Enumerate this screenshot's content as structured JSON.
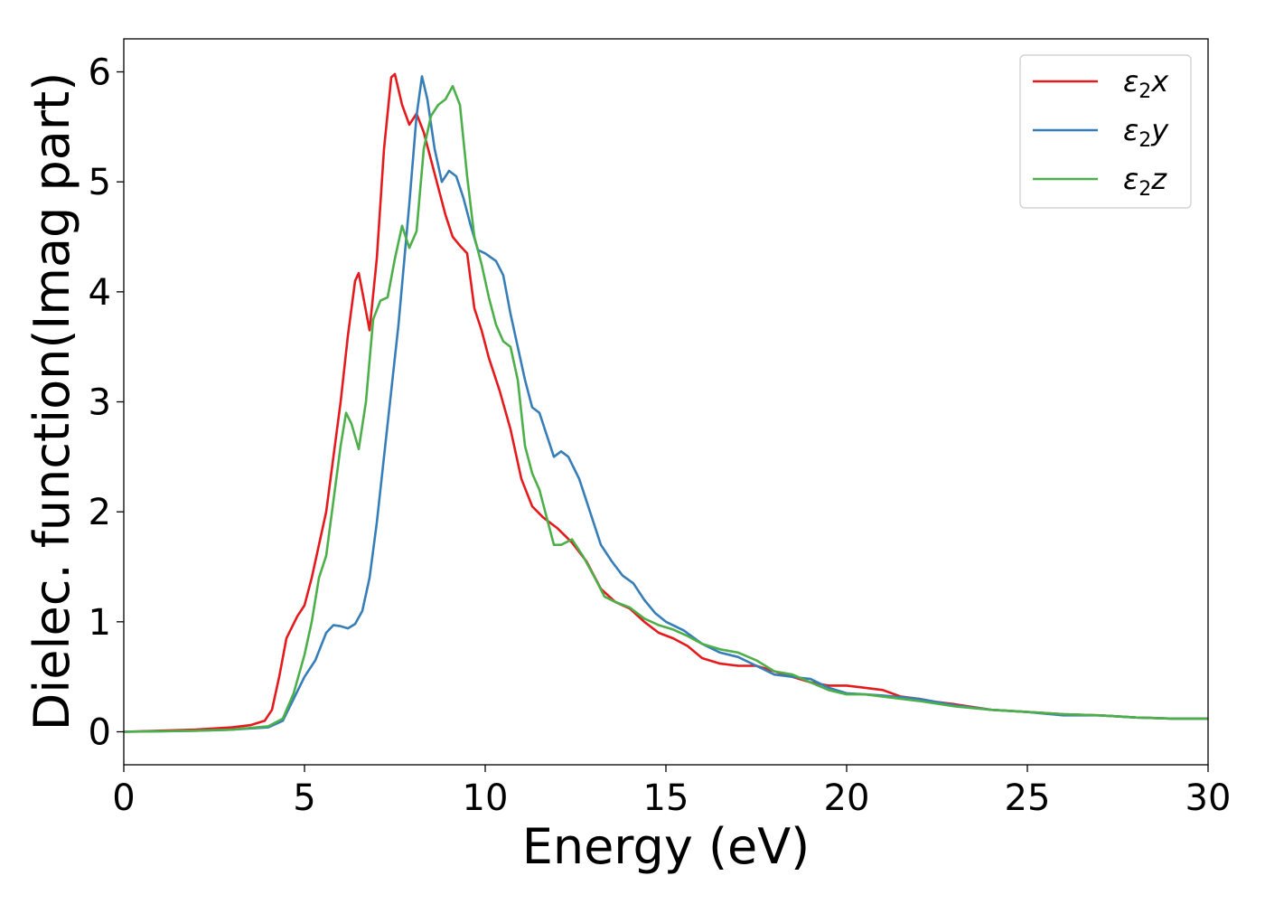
{
  "chart_data": {
    "type": "line",
    "title": "",
    "xlabel": "Energy (eV)",
    "ylabel": "Dielec. function(Imag part)",
    "xlim": [
      0,
      30
    ],
    "ylim": [
      -0.3,
      6.3
    ],
    "xticks": [
      0,
      5,
      10,
      15,
      20,
      25,
      30
    ],
    "yticks": [
      0,
      1,
      2,
      3,
      4,
      5,
      6
    ],
    "grid": false,
    "legend_position": "top-right",
    "series": [
      {
        "name": "ε₂x",
        "legend_main": "ε",
        "legend_sub": "2",
        "legend_suffix": "x",
        "color": "#e41a1c",
        "points": [
          [
            0,
            0
          ],
          [
            1,
            0.01
          ],
          [
            2,
            0.02
          ],
          [
            3,
            0.04
          ],
          [
            3.5,
            0.06
          ],
          [
            3.9,
            0.1
          ],
          [
            4.1,
            0.2
          ],
          [
            4.3,
            0.5
          ],
          [
            4.5,
            0.85
          ],
          [
            4.8,
            1.05
          ],
          [
            5,
            1.15
          ],
          [
            5.2,
            1.4
          ],
          [
            5.4,
            1.7
          ],
          [
            5.6,
            2.0
          ],
          [
            5.8,
            2.5
          ],
          [
            6.0,
            3.0
          ],
          [
            6.2,
            3.6
          ],
          [
            6.4,
            4.1
          ],
          [
            6.5,
            4.17
          ],
          [
            6.6,
            4.0
          ],
          [
            6.8,
            3.65
          ],
          [
            7.0,
            4.3
          ],
          [
            7.2,
            5.3
          ],
          [
            7.4,
            5.95
          ],
          [
            7.5,
            5.98
          ],
          [
            7.7,
            5.7
          ],
          [
            7.9,
            5.52
          ],
          [
            8.1,
            5.62
          ],
          [
            8.3,
            5.45
          ],
          [
            8.5,
            5.2
          ],
          [
            8.7,
            4.95
          ],
          [
            8.9,
            4.7
          ],
          [
            9.1,
            4.5
          ],
          [
            9.3,
            4.42
          ],
          [
            9.5,
            4.35
          ],
          [
            9.7,
            3.85
          ],
          [
            9.9,
            3.65
          ],
          [
            10.1,
            3.4
          ],
          [
            10.4,
            3.1
          ],
          [
            10.7,
            2.75
          ],
          [
            11.0,
            2.3
          ],
          [
            11.3,
            2.05
          ],
          [
            11.6,
            1.95
          ],
          [
            12.0,
            1.85
          ],
          [
            12.4,
            1.72
          ],
          [
            12.8,
            1.55
          ],
          [
            13.2,
            1.3
          ],
          [
            13.6,
            1.18
          ],
          [
            14.0,
            1.12
          ],
          [
            14.4,
            1.0
          ],
          [
            14.8,
            0.9
          ],
          [
            15.2,
            0.85
          ],
          [
            15.6,
            0.78
          ],
          [
            16.0,
            0.67
          ],
          [
            16.5,
            0.62
          ],
          [
            17.0,
            0.6
          ],
          [
            17.5,
            0.6
          ],
          [
            18.0,
            0.55
          ],
          [
            18.5,
            0.5
          ],
          [
            19.0,
            0.45
          ],
          [
            19.5,
            0.42
          ],
          [
            20.0,
            0.42
          ],
          [
            20.5,
            0.4
          ],
          [
            21.0,
            0.38
          ],
          [
            21.5,
            0.32
          ],
          [
            22.0,
            0.3
          ],
          [
            22.5,
            0.27
          ],
          [
            23.0,
            0.25
          ],
          [
            24.0,
            0.2
          ],
          [
            25.0,
            0.18
          ],
          [
            26.0,
            0.16
          ],
          [
            27.0,
            0.15
          ],
          [
            28.0,
            0.13
          ],
          [
            29.0,
            0.12
          ],
          [
            30.0,
            0.12
          ]
        ]
      },
      {
        "name": "ε₂y",
        "legend_main": "ε",
        "legend_sub": "2",
        "legend_suffix": "y",
        "color": "#377eb8",
        "points": [
          [
            0,
            0
          ],
          [
            1,
            0.005
          ],
          [
            2,
            0.01
          ],
          [
            3,
            0.02
          ],
          [
            4,
            0.04
          ],
          [
            4.4,
            0.1
          ],
          [
            4.7,
            0.3
          ],
          [
            5,
            0.5
          ],
          [
            5.3,
            0.65
          ],
          [
            5.6,
            0.9
          ],
          [
            5.8,
            0.97
          ],
          [
            6.0,
            0.96
          ],
          [
            6.2,
            0.94
          ],
          [
            6.4,
            0.98
          ],
          [
            6.6,
            1.1
          ],
          [
            6.8,
            1.4
          ],
          [
            7.0,
            1.9
          ],
          [
            7.3,
            2.8
          ],
          [
            7.6,
            3.7
          ],
          [
            7.9,
            4.8
          ],
          [
            8.1,
            5.6
          ],
          [
            8.25,
            5.96
          ],
          [
            8.4,
            5.75
          ],
          [
            8.6,
            5.3
          ],
          [
            8.8,
            5.0
          ],
          [
            9.0,
            5.1
          ],
          [
            9.2,
            5.05
          ],
          [
            9.4,
            4.85
          ],
          [
            9.6,
            4.6
          ],
          [
            9.8,
            4.38
          ],
          [
            10.0,
            4.35
          ],
          [
            10.3,
            4.28
          ],
          [
            10.5,
            4.15
          ],
          [
            10.7,
            3.8
          ],
          [
            10.9,
            3.5
          ],
          [
            11.1,
            3.2
          ],
          [
            11.3,
            2.95
          ],
          [
            11.5,
            2.9
          ],
          [
            11.7,
            2.7
          ],
          [
            11.9,
            2.5
          ],
          [
            12.1,
            2.55
          ],
          [
            12.3,
            2.5
          ],
          [
            12.6,
            2.3
          ],
          [
            12.9,
            2.0
          ],
          [
            13.2,
            1.7
          ],
          [
            13.5,
            1.55
          ],
          [
            13.8,
            1.42
          ],
          [
            14.1,
            1.35
          ],
          [
            14.4,
            1.2
          ],
          [
            14.7,
            1.08
          ],
          [
            15.0,
            1.0
          ],
          [
            15.5,
            0.92
          ],
          [
            16.0,
            0.8
          ],
          [
            16.5,
            0.72
          ],
          [
            17.0,
            0.68
          ],
          [
            17.5,
            0.6
          ],
          [
            18.0,
            0.52
          ],
          [
            18.5,
            0.5
          ],
          [
            19.0,
            0.48
          ],
          [
            19.5,
            0.4
          ],
          [
            20.0,
            0.35
          ],
          [
            20.5,
            0.34
          ],
          [
            21.0,
            0.33
          ],
          [
            22.0,
            0.3
          ],
          [
            23.0,
            0.24
          ],
          [
            24.0,
            0.2
          ],
          [
            25.0,
            0.18
          ],
          [
            26.0,
            0.15
          ],
          [
            27.0,
            0.15
          ],
          [
            28.0,
            0.13
          ],
          [
            29.0,
            0.12
          ],
          [
            30.0,
            0.12
          ]
        ]
      },
      {
        "name": "ε₂z",
        "legend_main": "ε",
        "legend_sub": "2",
        "legend_suffix": "z",
        "color": "#4daf4a",
        "points": [
          [
            0,
            0
          ],
          [
            1,
            0.005
          ],
          [
            2,
            0.01
          ],
          [
            3,
            0.02
          ],
          [
            4,
            0.05
          ],
          [
            4.4,
            0.12
          ],
          [
            4.7,
            0.35
          ],
          [
            5,
            0.7
          ],
          [
            5.2,
            1.0
          ],
          [
            5.4,
            1.4
          ],
          [
            5.6,
            1.6
          ],
          [
            5.8,
            2.1
          ],
          [
            6.0,
            2.6
          ],
          [
            6.15,
            2.9
          ],
          [
            6.3,
            2.8
          ],
          [
            6.5,
            2.57
          ],
          [
            6.7,
            3.0
          ],
          [
            6.9,
            3.75
          ],
          [
            7.1,
            3.92
          ],
          [
            7.3,
            3.95
          ],
          [
            7.5,
            4.3
          ],
          [
            7.7,
            4.6
          ],
          [
            7.9,
            4.4
          ],
          [
            8.1,
            4.55
          ],
          [
            8.3,
            5.3
          ],
          [
            8.5,
            5.6
          ],
          [
            8.7,
            5.7
          ],
          [
            8.9,
            5.75
          ],
          [
            9.1,
            5.87
          ],
          [
            9.3,
            5.7
          ],
          [
            9.5,
            5.05
          ],
          [
            9.7,
            4.5
          ],
          [
            9.9,
            4.25
          ],
          [
            10.1,
            3.95
          ],
          [
            10.3,
            3.7
          ],
          [
            10.5,
            3.55
          ],
          [
            10.7,
            3.5
          ],
          [
            10.9,
            3.2
          ],
          [
            11.1,
            2.6
          ],
          [
            11.3,
            2.35
          ],
          [
            11.5,
            2.2
          ],
          [
            11.7,
            1.95
          ],
          [
            11.9,
            1.7
          ],
          [
            12.1,
            1.7
          ],
          [
            12.4,
            1.75
          ],
          [
            12.7,
            1.6
          ],
          [
            13.0,
            1.42
          ],
          [
            13.3,
            1.23
          ],
          [
            13.6,
            1.18
          ],
          [
            14.0,
            1.13
          ],
          [
            14.4,
            1.03
          ],
          [
            14.8,
            0.97
          ],
          [
            15.2,
            0.93
          ],
          [
            15.6,
            0.87
          ],
          [
            16.0,
            0.8
          ],
          [
            16.5,
            0.75
          ],
          [
            17.0,
            0.72
          ],
          [
            17.5,
            0.65
          ],
          [
            18.0,
            0.55
          ],
          [
            18.5,
            0.52
          ],
          [
            19.0,
            0.45
          ],
          [
            19.5,
            0.38
          ],
          [
            20.0,
            0.34
          ],
          [
            20.5,
            0.34
          ],
          [
            21.0,
            0.32
          ],
          [
            22.0,
            0.28
          ],
          [
            23.0,
            0.23
          ],
          [
            24.0,
            0.2
          ],
          [
            25.0,
            0.18
          ],
          [
            26.0,
            0.16
          ],
          [
            27.0,
            0.15
          ],
          [
            28.0,
            0.13
          ],
          [
            29.0,
            0.12
          ],
          [
            30.0,
            0.12
          ]
        ]
      }
    ]
  }
}
